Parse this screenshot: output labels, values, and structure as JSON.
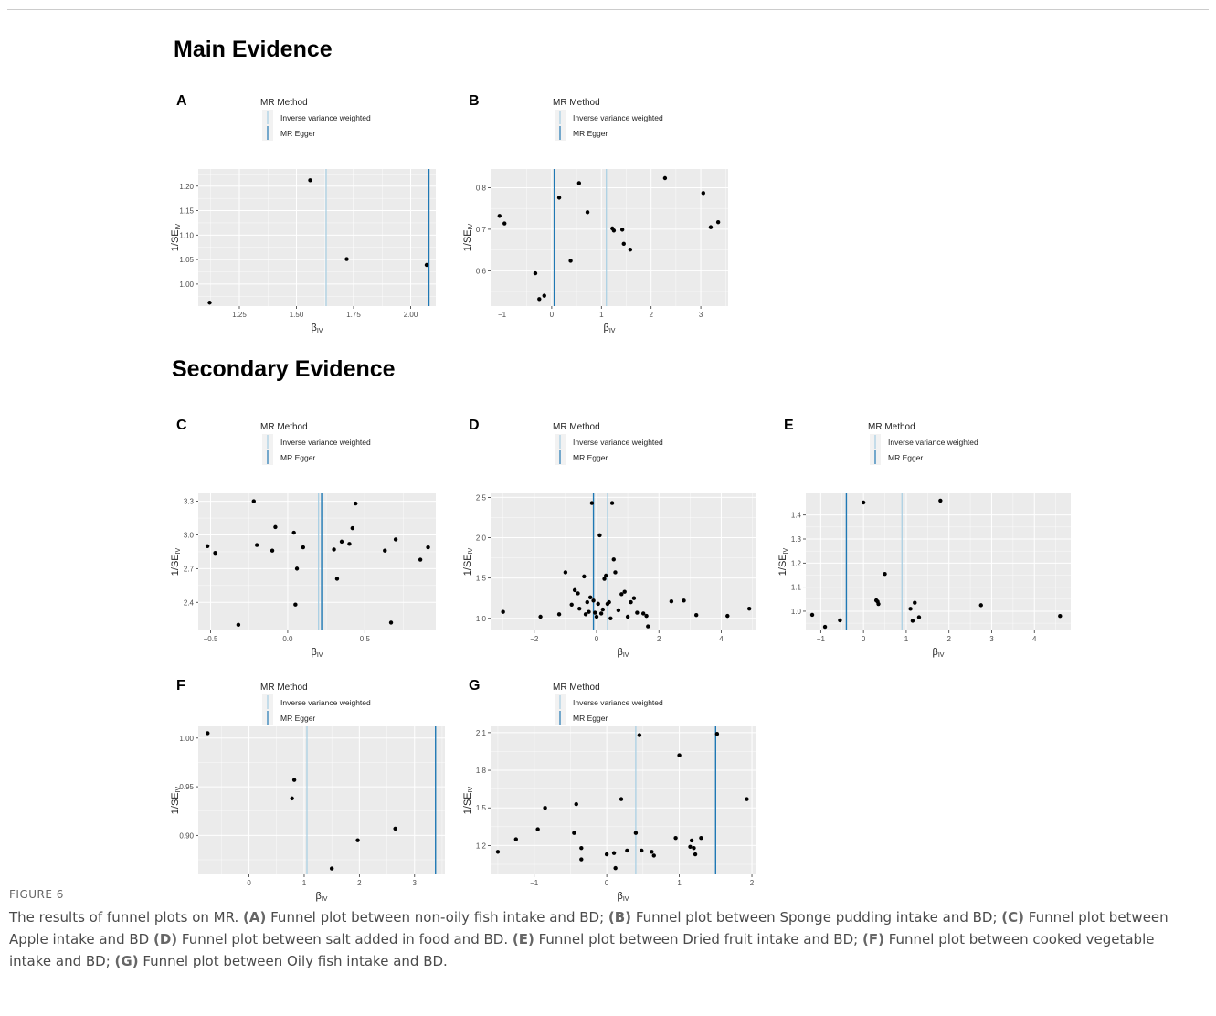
{
  "sections": {
    "main": "Main Evidence",
    "secondary": "Secondary Evidence"
  },
  "legend": {
    "title": "MR Method",
    "ivw": "Inverse variance weighted",
    "egger": "MR Egger"
  },
  "axis": {
    "xlabel": "β",
    "xlabel_sub": "IV",
    "ylabel": "1/SE",
    "ylabel_sub": "IV"
  },
  "colors": {
    "panel_bg": "#ebebeb",
    "grid": "#ffffff",
    "ivw": "#a6cee3",
    "egger": "#1f78b4",
    "point": "#000000"
  },
  "chart_data": [
    {
      "type": "scatter",
      "panel": "A",
      "xlim": [
        1.07,
        2.11
      ],
      "ylim": [
        0.955,
        1.235
      ],
      "xticks": [
        1.25,
        1.5,
        1.75,
        2.0
      ],
      "xtick_labels": [
        "1.25",
        "1.50",
        "1.75",
        "2.00"
      ],
      "yticks": [
        1.0,
        1.05,
        1.1,
        1.15,
        1.2
      ],
      "ytick_labels": [
        "1.00",
        "1.05",
        "1.10",
        "1.15",
        "1.20"
      ],
      "ivw": 1.63,
      "egger": 2.08,
      "points": [
        [
          1.12,
          0.962
        ],
        [
          1.56,
          1.212
        ],
        [
          1.72,
          1.051
        ],
        [
          2.07,
          1.039
        ]
      ]
    },
    {
      "type": "scatter",
      "panel": "B",
      "xlim": [
        -1.23,
        3.55
      ],
      "ylim": [
        0.515,
        0.845
      ],
      "xticks": [
        -1,
        0,
        1,
        2,
        3
      ],
      "xtick_labels": [
        "−1",
        "0",
        "1",
        "2",
        "3"
      ],
      "yticks": [
        0.6,
        0.7,
        0.8
      ],
      "ytick_labels": [
        "0.6",
        "0.7",
        "0.8"
      ],
      "ivw": 1.1,
      "egger": 0.05,
      "points": [
        [
          -1.05,
          0.732
        ],
        [
          -0.95,
          0.714
        ],
        [
          -0.33,
          0.594
        ],
        [
          -0.25,
          0.532
        ],
        [
          -0.15,
          0.54
        ],
        [
          0.15,
          0.776
        ],
        [
          0.38,
          0.624
        ],
        [
          0.55,
          0.811
        ],
        [
          0.72,
          0.741
        ],
        [
          1.22,
          0.702
        ],
        [
          1.25,
          0.697
        ],
        [
          1.42,
          0.699
        ],
        [
          1.45,
          0.665
        ],
        [
          1.58,
          0.651
        ],
        [
          2.28,
          0.823
        ],
        [
          3.05,
          0.787
        ],
        [
          3.2,
          0.705
        ],
        [
          3.35,
          0.717
        ]
      ]
    },
    {
      "type": "scatter",
      "panel": "C",
      "xlim": [
        -0.58,
        0.96
      ],
      "ylim": [
        2.15,
        3.37
      ],
      "xticks": [
        -0.5,
        0.0,
        0.5
      ],
      "xtick_labels": [
        "−0.5",
        "0.0",
        "0.5"
      ],
      "yticks": [
        2.4,
        2.7,
        3.0,
        3.3
      ],
      "ytick_labels": [
        "2.4",
        "2.7",
        "3.0",
        "3.3"
      ],
      "ivw": 0.2,
      "egger": 0.22,
      "points": [
        [
          -0.52,
          2.9
        ],
        [
          -0.47,
          2.84
        ],
        [
          -0.32,
          2.2
        ],
        [
          -0.22,
          3.3
        ],
        [
          -0.2,
          2.91
        ],
        [
          -0.1,
          2.86
        ],
        [
          -0.08,
          3.07
        ],
        [
          0.04,
          3.02
        ],
        [
          0.05,
          2.38
        ],
        [
          0.06,
          2.7
        ],
        [
          0.1,
          2.89
        ],
        [
          0.3,
          2.87
        ],
        [
          0.32,
          2.61
        ],
        [
          0.35,
          2.94
        ],
        [
          0.4,
          2.92
        ],
        [
          0.42,
          3.06
        ],
        [
          0.44,
          3.28
        ],
        [
          0.63,
          2.86
        ],
        [
          0.67,
          2.22
        ],
        [
          0.7,
          2.96
        ],
        [
          0.86,
          2.78
        ],
        [
          0.91,
          2.89
        ]
      ]
    },
    {
      "type": "scatter",
      "panel": "D",
      "xlim": [
        -3.4,
        5.1
      ],
      "ylim": [
        0.85,
        2.55
      ],
      "xticks": [
        -2,
        0,
        2,
        4
      ],
      "xtick_labels": [
        "−2",
        "0",
        "2",
        "4"
      ],
      "yticks": [
        1.0,
        1.5,
        2.0,
        2.5
      ],
      "ytick_labels": [
        "1.0",
        "1.5",
        "2.0",
        "2.5"
      ],
      "ivw": 0.35,
      "egger": -0.1,
      "points": [
        [
          -3.0,
          1.08
        ],
        [
          -1.8,
          1.02
        ],
        [
          -1.2,
          1.05
        ],
        [
          -1.0,
          1.57
        ],
        [
          -0.8,
          1.17
        ],
        [
          -0.7,
          1.35
        ],
        [
          -0.6,
          1.31
        ],
        [
          -0.55,
          1.12
        ],
        [
          -0.4,
          1.52
        ],
        [
          -0.35,
          1.05
        ],
        [
          -0.3,
          1.2
        ],
        [
          -0.25,
          1.08
        ],
        [
          -0.2,
          1.26
        ],
        [
          -0.15,
          2.43
        ],
        [
          -0.1,
          1.22
        ],
        [
          -0.05,
          1.07
        ],
        [
          0.0,
          1.02
        ],
        [
          0.05,
          1.18
        ],
        [
          0.1,
          2.03
        ],
        [
          0.15,
          1.06
        ],
        [
          0.2,
          1.11
        ],
        [
          0.25,
          1.49
        ],
        [
          0.3,
          1.53
        ],
        [
          0.35,
          1.18
        ],
        [
          0.4,
          1.2
        ],
        [
          0.45,
          1.0
        ],
        [
          0.5,
          2.43
        ],
        [
          0.55,
          1.73
        ],
        [
          0.6,
          1.57
        ],
        [
          0.7,
          1.1
        ],
        [
          0.8,
          1.3
        ],
        [
          0.9,
          1.33
        ],
        [
          1.0,
          1.02
        ],
        [
          1.1,
          1.2
        ],
        [
          1.2,
          1.25
        ],
        [
          1.3,
          1.07
        ],
        [
          1.5,
          1.06
        ],
        [
          1.6,
          1.03
        ],
        [
          1.65,
          0.9
        ],
        [
          2.4,
          1.21
        ],
        [
          2.8,
          1.22
        ],
        [
          3.2,
          1.04
        ],
        [
          4.2,
          1.03
        ],
        [
          4.9,
          1.12
        ]
      ]
    },
    {
      "type": "scatter",
      "panel": "E",
      "xlim": [
        -1.35,
        4.85
      ],
      "ylim": [
        0.92,
        1.49
      ],
      "xticks": [
        -1,
        0,
        1,
        2,
        3,
        4
      ],
      "xtick_labels": [
        "−1",
        "0",
        "1",
        "2",
        "3",
        "4"
      ],
      "yticks": [
        1.0,
        1.1,
        1.2,
        1.3,
        1.4
      ],
      "ytick_labels": [
        "1.0",
        "1.1",
        "1.2",
        "1.3",
        "1.4"
      ],
      "ivw": 0.9,
      "egger": -0.4,
      "points": [
        [
          -1.2,
          0.985
        ],
        [
          -0.9,
          0.935
        ],
        [
          -0.55,
          0.962
        ],
        [
          0.0,
          1.452
        ],
        [
          0.3,
          1.045
        ],
        [
          0.33,
          1.04
        ],
        [
          0.35,
          1.03
        ],
        [
          0.5,
          1.155
        ],
        [
          1.1,
          1.01
        ],
        [
          1.15,
          0.96
        ],
        [
          1.2,
          1.035
        ],
        [
          1.3,
          0.975
        ],
        [
          1.8,
          1.46
        ],
        [
          2.75,
          1.025
        ],
        [
          4.6,
          0.98
        ]
      ]
    },
    {
      "type": "scatter",
      "panel": "F",
      "xlim": [
        -0.92,
        3.55
      ],
      "ylim": [
        0.86,
        1.012
      ],
      "xticks": [
        0,
        1,
        2,
        3
      ],
      "xtick_labels": [
        "0",
        "1",
        "2",
        "3"
      ],
      "yticks": [
        0.9,
        0.95,
        1.0
      ],
      "ytick_labels": [
        "0.90",
        "0.95",
        "1.00"
      ],
      "ivw": 1.05,
      "egger": 3.38,
      "points": [
        [
          -0.75,
          1.005
        ],
        [
          0.78,
          0.938
        ],
        [
          0.82,
          0.957
        ],
        [
          1.5,
          0.866
        ],
        [
          1.97,
          0.895
        ],
        [
          2.65,
          0.907
        ]
      ]
    },
    {
      "type": "scatter",
      "panel": "G",
      "xlim": [
        -1.6,
        2.05
      ],
      "ylim": [
        0.97,
        2.15
      ],
      "xticks": [
        -1,
        0,
        1,
        2
      ],
      "xtick_labels": [
        "−1",
        "0",
        "1",
        "2"
      ],
      "yticks": [
        1.2,
        1.5,
        1.8,
        2.1
      ],
      "ytick_labels": [
        "1.2",
        "1.5",
        "1.8",
        "2.1"
      ],
      "ivw": 0.4,
      "egger": 1.5,
      "points": [
        [
          -1.5,
          1.15
        ],
        [
          -1.25,
          1.25
        ],
        [
          -0.95,
          1.33
        ],
        [
          -0.85,
          1.5
        ],
        [
          -0.45,
          1.3
        ],
        [
          -0.42,
          1.53
        ],
        [
          -0.35,
          1.18
        ],
        [
          -0.35,
          1.09
        ],
        [
          0.0,
          1.13
        ],
        [
          0.1,
          1.14
        ],
        [
          0.12,
          1.02
        ],
        [
          0.2,
          1.57
        ],
        [
          0.28,
          1.16
        ],
        [
          0.4,
          1.3
        ],
        [
          0.45,
          2.08
        ],
        [
          0.48,
          1.16
        ],
        [
          0.62,
          1.15
        ],
        [
          0.65,
          1.12
        ],
        [
          0.95,
          1.26
        ],
        [
          1.0,
          1.92
        ],
        [
          1.15,
          1.19
        ],
        [
          1.17,
          1.24
        ],
        [
          1.2,
          1.18
        ],
        [
          1.22,
          1.13
        ],
        [
          1.3,
          1.26
        ],
        [
          1.52,
          2.09
        ],
        [
          1.93,
          1.57
        ]
      ]
    }
  ],
  "caption": {
    "label": "FIGURE 6",
    "intro": "The results of funnel plots on MR. ",
    "items": [
      {
        "tag": "(A)",
        "text": " Funnel plot between non-oily fish intake and BD; "
      },
      {
        "tag": "(B)",
        "text": " Funnel plot between Sponge pudding intake and BD; "
      },
      {
        "tag": "(C)",
        "text": " Funnel plot between Apple intake and BD "
      },
      {
        "tag": "(D)",
        "text": " Funnel plot between salt added in food and BD. "
      },
      {
        "tag": "(E)",
        "text": " Funnel plot between Dried fruit intake and BD; "
      },
      {
        "tag": "(F)",
        "text": " Funnel plot between cooked vegetable intake and BD; "
      },
      {
        "tag": "(G)",
        "text": " Funnel plot between Oily fish intake and BD."
      }
    ]
  }
}
